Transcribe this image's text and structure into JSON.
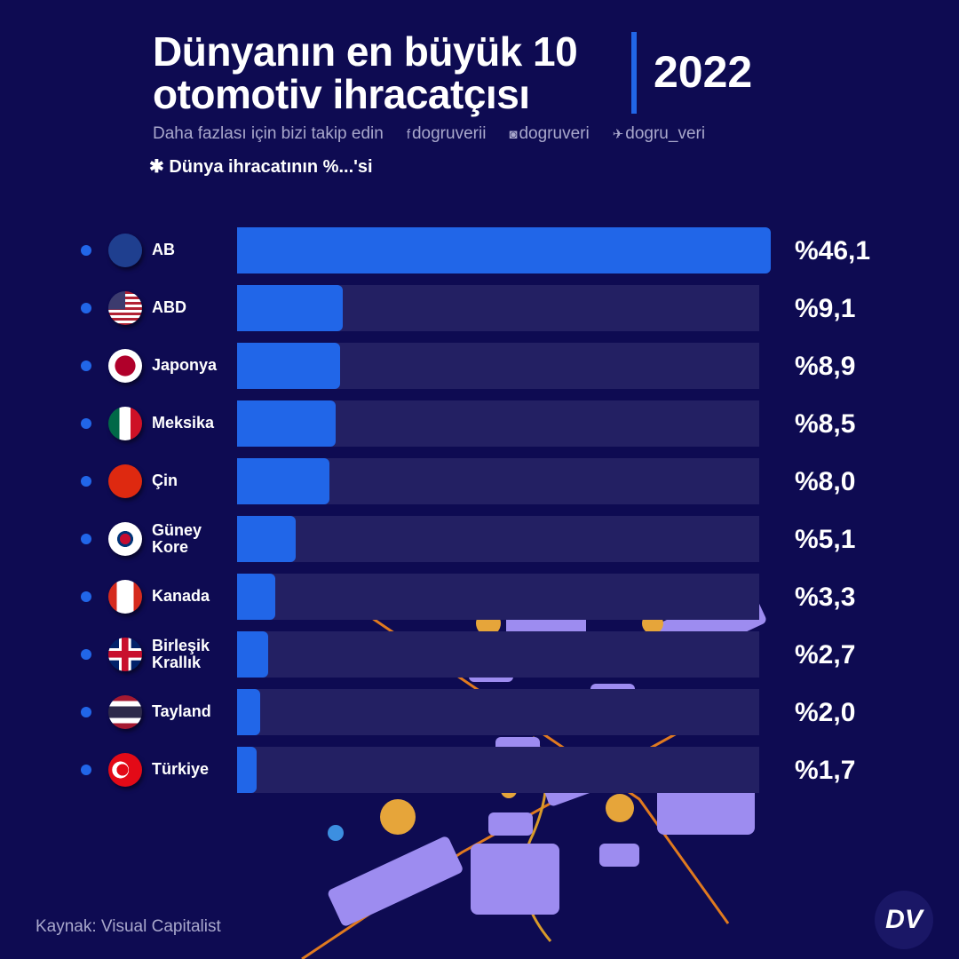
{
  "header": {
    "title_line1": "Dünyanın en büyük 10",
    "title_line2": "otomotiv ihracatçısı",
    "year": "2022",
    "follow_text": "Daha fazlası için bizi takip edin",
    "facebook": "dogruverii",
    "instagram": "dogruveri",
    "twitter": "dogru_veri",
    "note": "✱ Dünya ihracatının %...'si"
  },
  "footer": {
    "source": "Kaynak: Visual Capitalist",
    "logo": "DV"
  },
  "colors": {
    "background": "#0e0b52",
    "bar": "#2166e8",
    "track": "#232063"
  },
  "chart_data": {
    "type": "bar",
    "orientation": "horizontal",
    "title": "Dünyanın en büyük 10 otomotiv ihracatçısı",
    "categories": [
      "AB",
      "ABD",
      "Japonya",
      "Meksika",
      "Çin",
      "Güney Kore",
      "Kanada",
      "Birleşik Krallık",
      "Tayland",
      "Türkiye"
    ],
    "values": [
      46.1,
      9.1,
      8.9,
      8.5,
      8.0,
      5.1,
      3.3,
      2.7,
      2.0,
      1.7
    ],
    "labels": [
      "%46,1",
      "%9,1",
      "%8,9",
      "%8,5",
      "%8,0",
      "%5,1",
      "%3,3",
      "%2,7",
      "%2,0",
      "%1,7"
    ],
    "flags": [
      "eu-flag",
      "usa-flag",
      "japan-flag",
      "mexico-flag",
      "china-flag",
      "south-korea-flag",
      "canada-flag",
      "uk-flag",
      "thailand-flag",
      "turkey-flag"
    ],
    "unit": "% of world exports",
    "xlim": [
      0,
      46.1
    ]
  }
}
